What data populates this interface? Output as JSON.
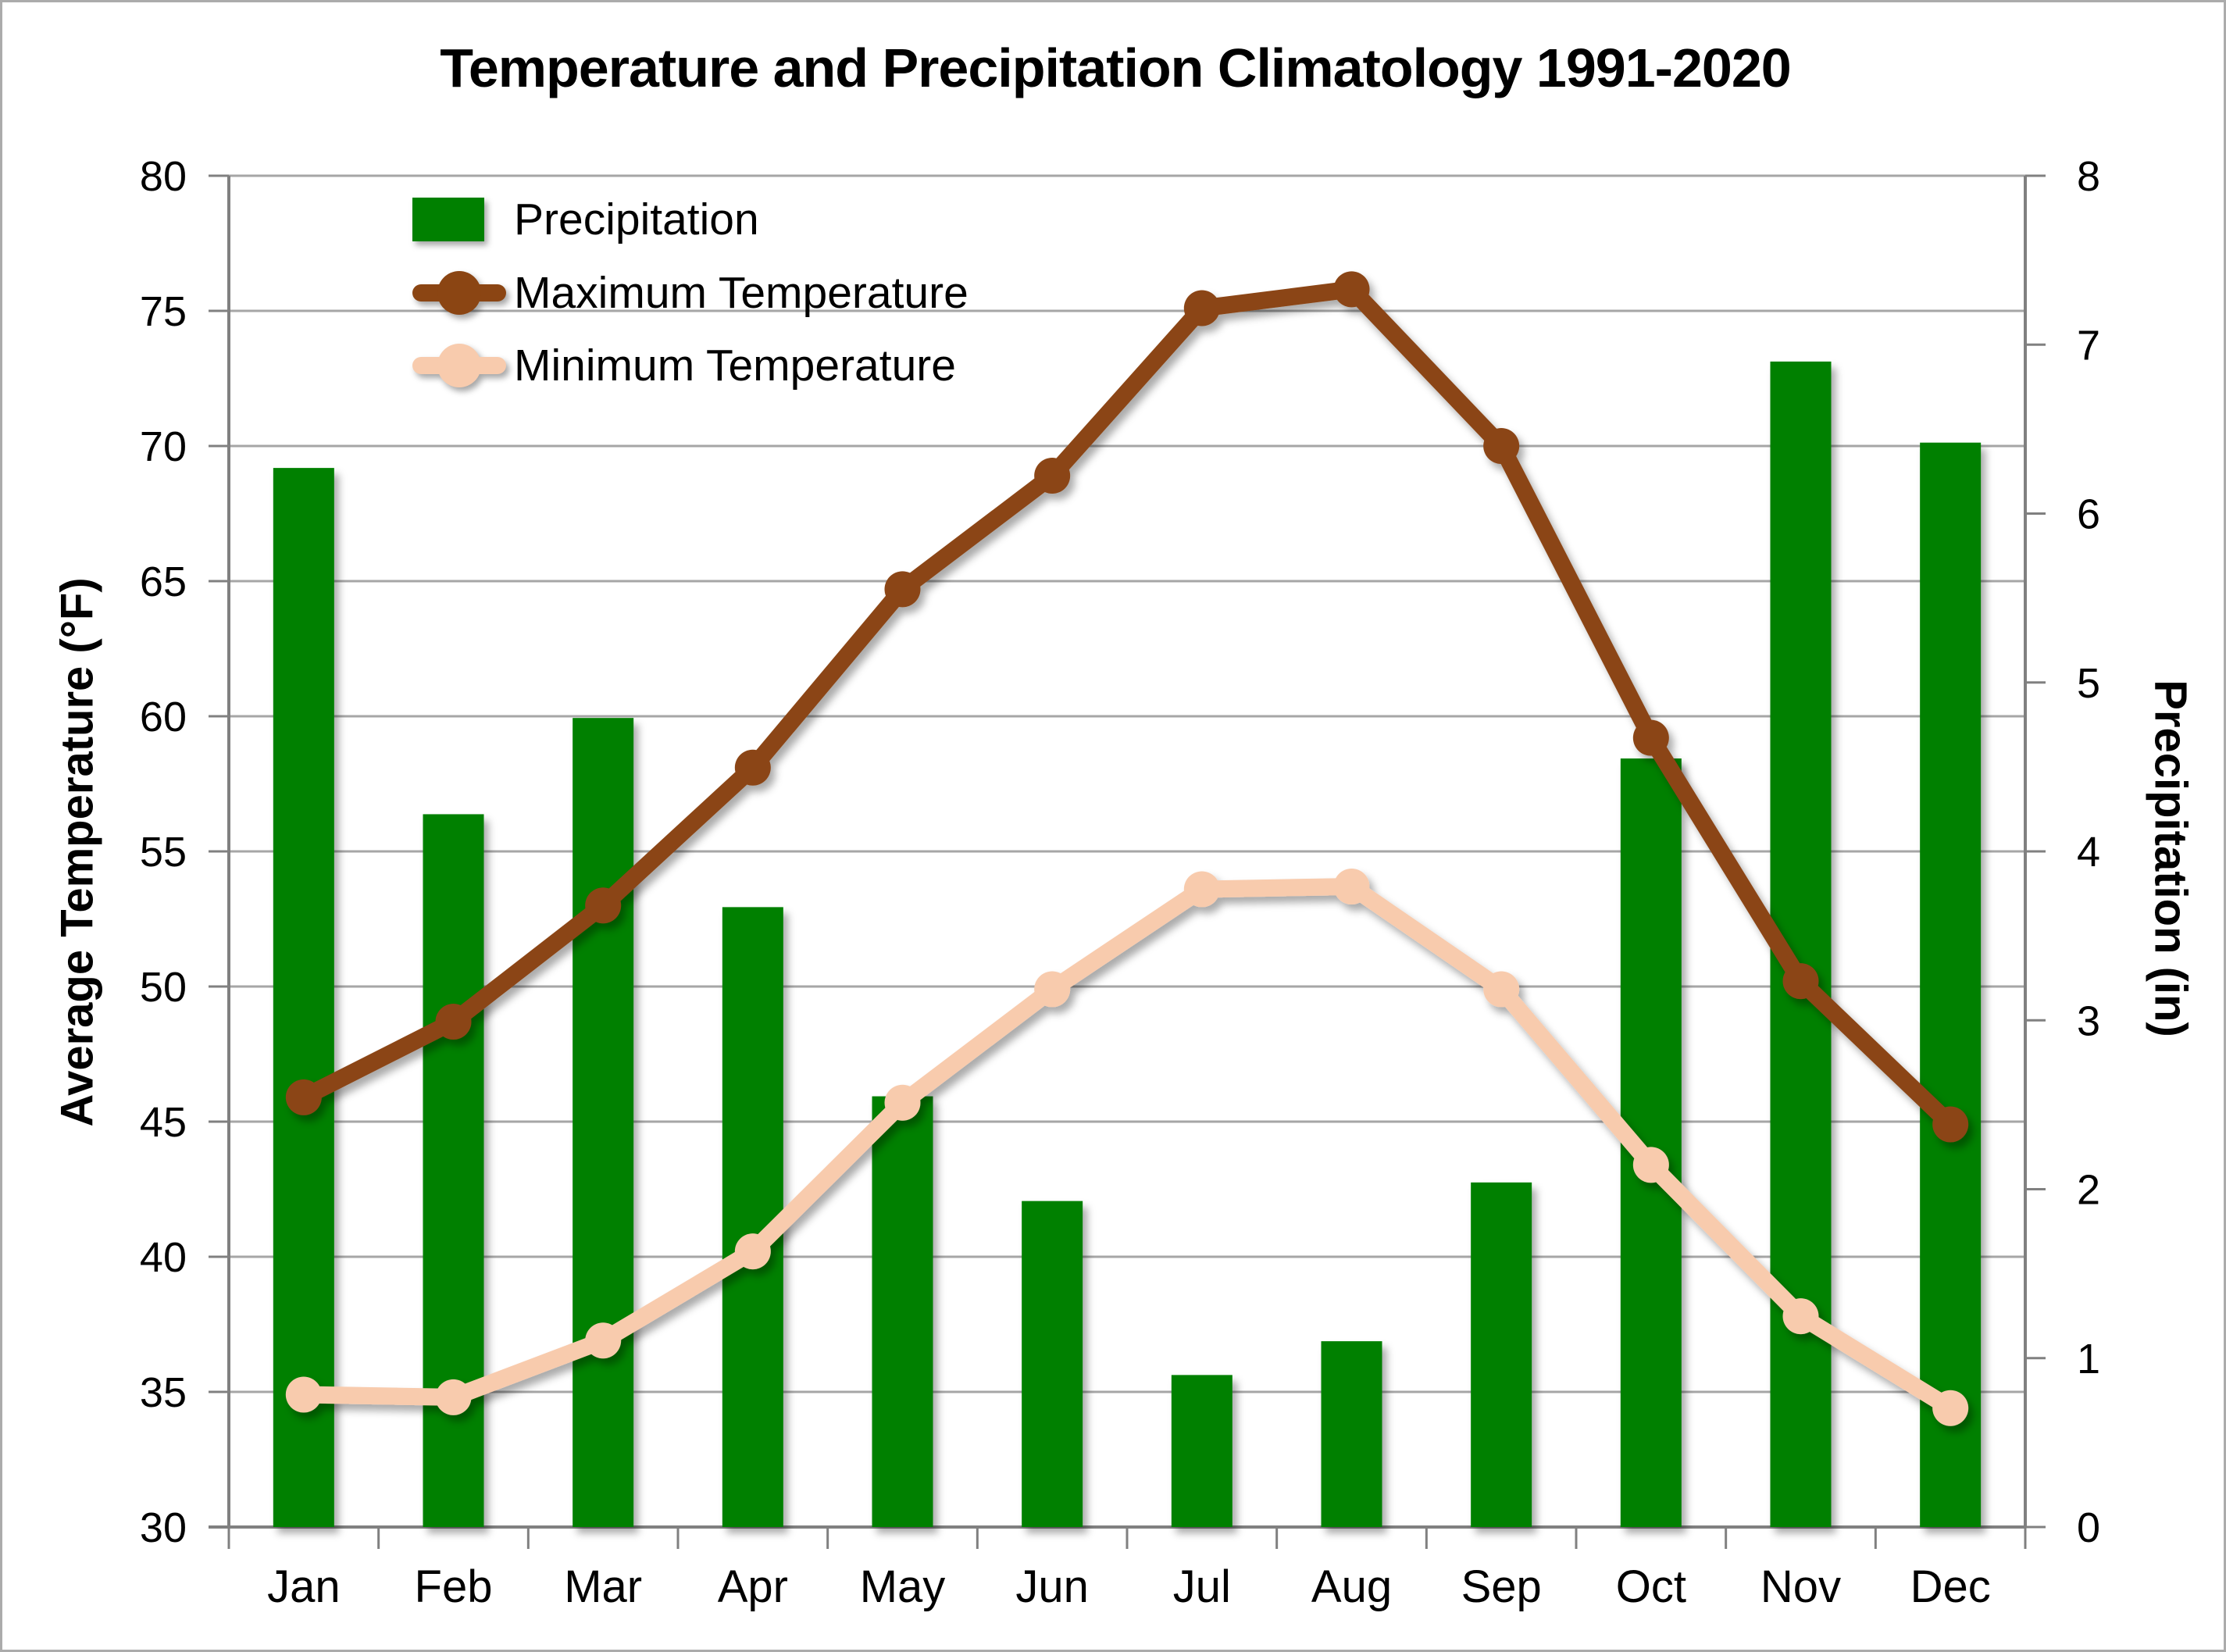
{
  "chart_data": {
    "type": "bar",
    "title": "Temperature and Precipitation Climatology 1991-2020",
    "categories": [
      "Jan",
      "Feb",
      "Mar",
      "Apr",
      "May",
      "Jun",
      "Jul",
      "Aug",
      "Sep",
      "Oct",
      "Nov",
      "Dec"
    ],
    "series": [
      {
        "name": "Precipitation",
        "type": "bar",
        "axis": "right",
        "color": "#008000",
        "values": [
          6.27,
          4.22,
          4.79,
          3.67,
          2.55,
          1.93,
          0.9,
          1.1,
          2.04,
          4.55,
          6.9,
          6.42
        ]
      },
      {
        "name": "Maximum Temperature",
        "type": "line",
        "axis": "left",
        "color": "#8B4513",
        "values": [
          45.9,
          48.7,
          53.0,
          58.1,
          64.7,
          68.9,
          75.1,
          75.8,
          70.0,
          59.2,
          50.2,
          44.9
        ]
      },
      {
        "name": "Minimum Temperature",
        "type": "line",
        "axis": "left",
        "color": "#F8CBAD",
        "values": [
          34.9,
          34.8,
          36.9,
          40.2,
          45.7,
          49.9,
          53.6,
          53.7,
          49.9,
          43.4,
          37.8,
          34.4
        ]
      }
    ],
    "left_axis": {
      "label": "Average Temperature (°F)",
      "min": 30,
      "max": 80,
      "step": 5,
      "ticks": [
        30,
        35,
        40,
        45,
        50,
        55,
        60,
        65,
        70,
        75,
        80
      ]
    },
    "right_axis": {
      "label": "Precipitation (in)",
      "min": 0,
      "max": 8,
      "step": 1,
      "ticks": [
        0,
        1,
        2,
        3,
        4,
        5,
        6,
        7,
        8
      ]
    },
    "grid": true,
    "legend_position": "inside-top-left",
    "gridline_color": "#A6A6A6",
    "axis_line_color": "#808080",
    "text_color": "#000000"
  }
}
